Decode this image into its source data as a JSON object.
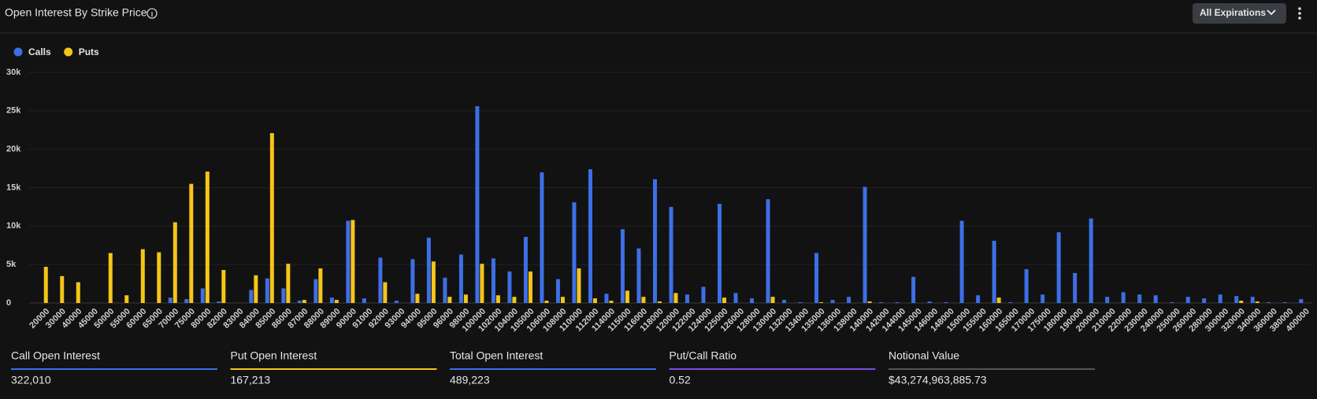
{
  "header": {
    "title": "Open Interest By Strike Price",
    "filter": "All Expirations"
  },
  "chart_data": {
    "type": "bar",
    "legend": "top-left",
    "grid": true,
    "categories": [
      "20000",
      "30000",
      "40000",
      "45000",
      "50000",
      "55000",
      "60000",
      "65000",
      "70000",
      "75000",
      "80000",
      "82000",
      "83000",
      "84000",
      "85000",
      "86000",
      "87000",
      "88000",
      "89000",
      "90000",
      "91000",
      "92000",
      "93000",
      "94000",
      "95000",
      "96000",
      "98000",
      "100000",
      "102000",
      "104000",
      "105000",
      "106000",
      "108000",
      "110000",
      "112000",
      "114000",
      "115000",
      "116000",
      "118000",
      "120000",
      "122000",
      "124000",
      "125000",
      "126000",
      "128000",
      "130000",
      "132000",
      "134000",
      "135000",
      "136000",
      "138000",
      "140000",
      "142000",
      "144000",
      "145000",
      "146000",
      "148000",
      "150000",
      "155000",
      "160000",
      "165000",
      "170000",
      "175000",
      "180000",
      "190000",
      "200000",
      "210000",
      "220000",
      "230000",
      "240000",
      "250000",
      "260000",
      "280000",
      "300000",
      "320000",
      "340000",
      "360000",
      "380000",
      "400000"
    ],
    "series": [
      {
        "name": "Calls",
        "color": "#3d6fe6",
        "values": [
          0,
          0,
          0,
          0,
          0,
          0,
          0,
          0,
          700,
          500,
          1900,
          200,
          0,
          1700,
          3200,
          1900,
          300,
          3100,
          700,
          10700,
          600,
          5900,
          300,
          5700,
          8500,
          3300,
          6300,
          25600,
          5800,
          4100,
          8600,
          17000,
          3100,
          13100,
          17400,
          1200,
          9600,
          7100,
          16100,
          12500,
          1100,
          2100,
          12900,
          1300,
          600,
          13500,
          400,
          100,
          6500,
          400,
          800,
          15100,
          100,
          100,
          3400,
          200,
          100,
          10700,
          1000,
          8100,
          100,
          4400,
          1100,
          9200,
          3900,
          11000,
          800,
          1400,
          1100,
          1000,
          100,
          800,
          600,
          1100,
          900,
          800,
          100,
          100,
          500
        ]
      },
      {
        "name": "Puts",
        "color": "#f5c518",
        "values": [
          4700,
          3500,
          2700,
          0,
          6500,
          1000,
          7000,
          6600,
          10500,
          15500,
          17100,
          4300,
          0,
          3600,
          22100,
          5100,
          400,
          4500,
          400,
          10800,
          0,
          2700,
          0,
          1200,
          5400,
          800,
          1100,
          5100,
          1000,
          800,
          4100,
          300,
          800,
          4500,
          600,
          300,
          1600,
          800,
          200,
          1300,
          0,
          0,
          700,
          0,
          0,
          800,
          0,
          0,
          100,
          0,
          0,
          200,
          0,
          0,
          0,
          0,
          0,
          0,
          0,
          700,
          0,
          0,
          0,
          0,
          0,
          0,
          0,
          0,
          0,
          0,
          0,
          0,
          0,
          0,
          300,
          200,
          0,
          0,
          0
        ]
      }
    ],
    "ylim": [
      0,
      30000
    ],
    "yticks": [
      0,
      {
        "value": 5000,
        "label": "5k"
      },
      {
        "value": 10000,
        "label": "10k"
      },
      {
        "value": 15000,
        "label": "15k"
      },
      {
        "value": 20000,
        "label": "20k"
      },
      {
        "value": 25000,
        "label": "25k"
      },
      {
        "value": 30000,
        "label": "30k"
      }
    ]
  },
  "stats": [
    {
      "label": "Call Open Interest",
      "value": "322,010",
      "color": "#3d6fe6"
    },
    {
      "label": "Put Open Interest",
      "value": "167,213",
      "color": "#f5c518"
    },
    {
      "label": "Total Open Interest",
      "value": "489,223",
      "color": "#3d6fe6"
    },
    {
      "label": "Put/Call Ratio",
      "value": "0.52",
      "color": "#7c4ddf"
    },
    {
      "label": "Notional Value",
      "value": "$43,274,963,885.73",
      "color": "#555555"
    }
  ]
}
